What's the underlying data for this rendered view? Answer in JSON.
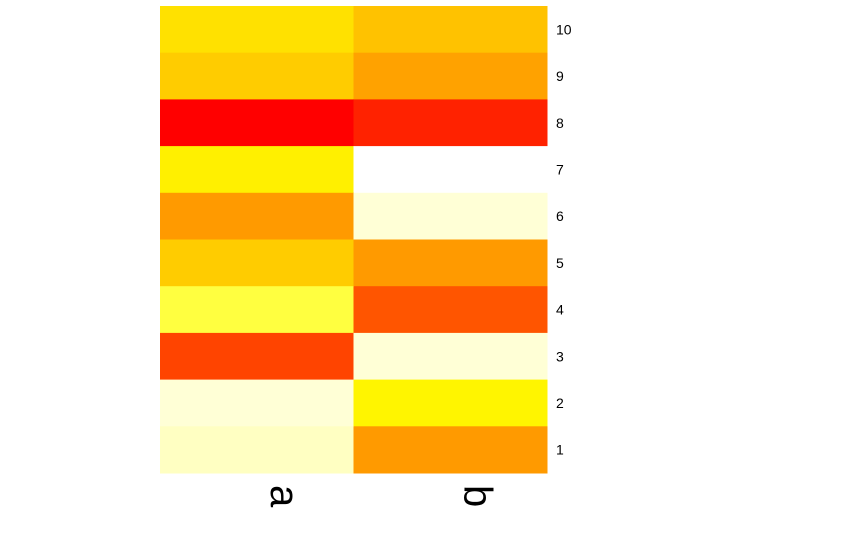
{
  "chart_data": {
    "type": "heatmap",
    "title": "",
    "xlabel": "",
    "ylabel": "",
    "columns": [
      "a",
      "b"
    ],
    "rows": [
      "10",
      "9",
      "8",
      "7",
      "6",
      "5",
      "4",
      "3",
      "2",
      "1"
    ],
    "grid": false,
    "colormap": "heat",
    "cells": [
      [
        "#FFE100",
        "#FFC200"
      ],
      [
        "#FFCC00",
        "#FFA200"
      ],
      [
        "#FF0000",
        "#FF2200"
      ],
      [
        "#FFF000",
        "#FFFFFF"
      ],
      [
        "#FF9A00",
        "#FFFFD6"
      ],
      [
        "#FFCC00",
        "#FF9A00"
      ],
      [
        "#FFFF40",
        "#FF5500"
      ],
      [
        "#FF4400",
        "#FFFFD6"
      ],
      [
        "#FFFFD6",
        "#FFF500"
      ],
      [
        "#FFFFC2",
        "#FF9A00"
      ]
    ]
  }
}
